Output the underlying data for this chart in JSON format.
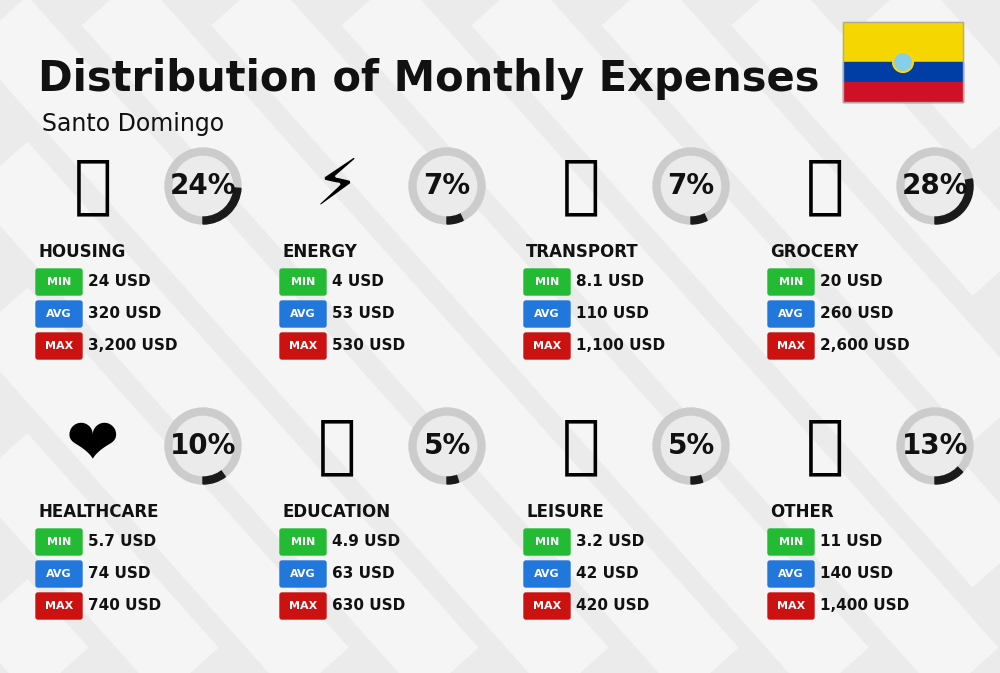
{
  "title": "Distribution of Monthly Expenses",
  "subtitle": "Santo Domingo",
  "background_color": "#ebebeb",
  "categories": [
    {
      "name": "HOUSING",
      "percent": 24,
      "icon": "🏗",
      "min": "24 USD",
      "avg": "320 USD",
      "max": "3,200 USD",
      "row": 0,
      "col": 0
    },
    {
      "name": "ENERGY",
      "percent": 7,
      "icon": "⚡",
      "min": "4 USD",
      "avg": "53 USD",
      "max": "530 USD",
      "row": 0,
      "col": 1
    },
    {
      "name": "TRANSPORT",
      "percent": 7,
      "icon": "🚌",
      "min": "8.1 USD",
      "avg": "110 USD",
      "max": "1,100 USD",
      "row": 0,
      "col": 2
    },
    {
      "name": "GROCERY",
      "percent": 28,
      "icon": "🛒",
      "min": "20 USD",
      "avg": "260 USD",
      "max": "2,600 USD",
      "row": 0,
      "col": 3
    },
    {
      "name": "HEALTHCARE",
      "percent": 10,
      "icon": "❤️",
      "min": "5.7 USD",
      "avg": "74 USD",
      "max": "740 USD",
      "row": 1,
      "col": 0
    },
    {
      "name": "EDUCATION",
      "percent": 5,
      "icon": "🎓",
      "min": "4.9 USD",
      "avg": "63 USD",
      "max": "630 USD",
      "row": 1,
      "col": 1
    },
    {
      "name": "LEISURE",
      "percent": 5,
      "icon": "🛍",
      "min": "3.2 USD",
      "avg": "42 USD",
      "max": "420 USD",
      "row": 1,
      "col": 2
    },
    {
      "name": "OTHER",
      "percent": 13,
      "icon": "💰",
      "min": "11 USD",
      "avg": "140 USD",
      "max": "1,400 USD",
      "row": 1,
      "col": 3
    }
  ],
  "min_color": "#22bb33",
  "avg_color": "#2277dd",
  "max_color": "#cc1111",
  "text_color": "#111111",
  "title_fontsize": 30,
  "subtitle_fontsize": 17,
  "pct_fontsize": 20,
  "cat_fontsize": 12,
  "val_fontsize": 11,
  "badge_label_fontsize": 8
}
